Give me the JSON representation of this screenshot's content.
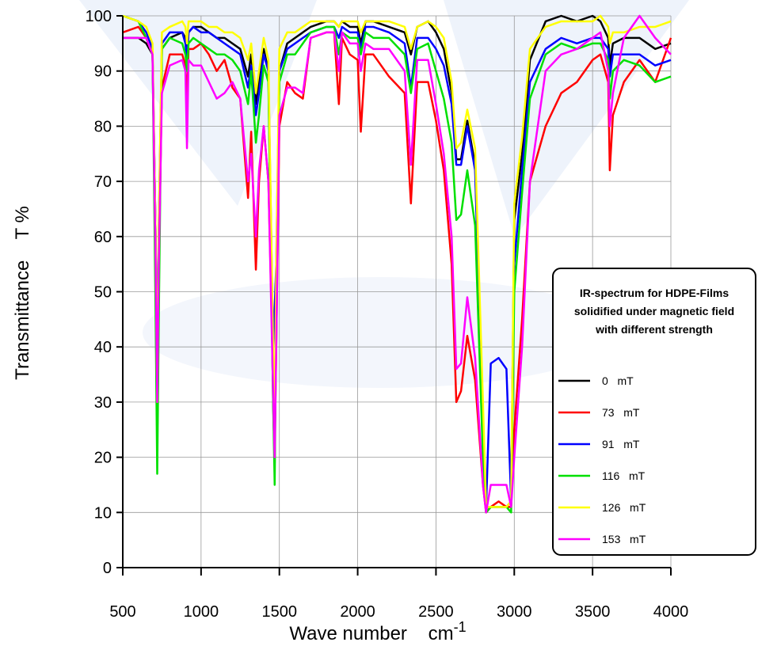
{
  "chart_data": {
    "type": "line",
    "x_label": {
      "text": "Wave number    cm",
      "superscript": "-1"
    },
    "y_label": "Transmittance    T %",
    "legend_title": [
      "IR-spectrum for HDPE-Films",
      "solidified under magnetic field",
      "with different strength"
    ],
    "legend_position": "right",
    "grid": true,
    "xlim": [
      500,
      4000
    ],
    "ylim": [
      0,
      100
    ],
    "xticks": [
      500,
      1000,
      1500,
      2000,
      2500,
      3000,
      3500,
      4000
    ],
    "yticks": [
      0,
      10,
      20,
      30,
      40,
      50,
      60,
      70,
      80,
      90,
      100
    ],
    "x": [
      500,
      600,
      650,
      690,
      710,
      720,
      730,
      750,
      800,
      880,
      900,
      910,
      920,
      950,
      1000,
      1050,
      1100,
      1150,
      1200,
      1250,
      1300,
      1320,
      1350,
      1370,
      1400,
      1430,
      1460,
      1470,
      1480,
      1500,
      1550,
      1600,
      1650,
      1700,
      1800,
      1850,
      1880,
      1900,
      1950,
      2000,
      2020,
      2050,
      2100,
      2200,
      2300,
      2340,
      2380,
      2450,
      2500,
      2550,
      2600,
      2630,
      2660,
      2700,
      2750,
      2800,
      2820,
      2850,
      2900,
      2950,
      2980,
      3000,
      3050,
      3100,
      3200,
      3300,
      3400,
      3500,
      3550,
      3600,
      3610,
      3630,
      3700,
      3800,
      3900,
      4000
    ],
    "series": [
      {
        "name": "0   mT",
        "color": "#000000",
        "values": [
          96,
          96,
          95,
          93,
          60,
          26,
          60,
          94,
          96,
          97,
          96,
          93,
          97,
          98,
          98,
          97,
          96,
          96,
          95,
          94,
          89,
          93,
          84,
          88,
          94,
          90,
          30,
          19,
          50,
          90,
          95,
          96,
          97,
          98,
          99,
          99,
          98,
          99,
          98,
          98,
          95,
          99,
          99,
          98,
          97,
          93,
          98,
          99,
          97,
          94,
          86,
          74,
          74,
          81,
          73,
          25,
          10,
          11,
          11,
          11,
          12,
          63,
          75,
          92,
          99,
          100,
          99,
          100,
          99,
          96,
          91,
          95,
          96,
          96,
          94,
          95
        ]
      },
      {
        "name": "73   mT",
        "color": "#ff0000",
        "values": [
          97,
          98,
          96,
          93,
          55,
          35,
          55,
          87,
          93,
          93,
          91,
          84,
          94,
          94,
          95,
          93,
          90,
          92,
          87,
          85,
          67,
          79,
          54,
          70,
          80,
          70,
          35,
          22,
          40,
          80,
          88,
          86,
          85,
          96,
          97,
          97,
          84,
          96,
          93,
          92,
          79,
          93,
          93,
          89,
          86,
          66,
          88,
          88,
          81,
          72,
          55,
          30,
          32,
          42,
          34,
          15,
          10,
          11,
          12,
          11,
          11,
          25,
          45,
          70,
          80,
          86,
          88,
          92,
          93,
          88,
          72,
          82,
          88,
          92,
          88,
          96
        ]
      },
      {
        "name": "91   mT",
        "color": "#0000ff",
        "values": [
          100,
          99,
          97,
          94,
          60,
          35,
          62,
          95,
          97,
          97,
          95,
          92,
          97,
          98,
          97,
          97,
          96,
          95,
          94,
          93,
          87,
          91,
          82,
          86,
          93,
          90,
          40,
          47,
          55,
          90,
          94,
          95,
          96,
          97,
          98,
          98,
          96,
          98,
          97,
          97,
          94,
          98,
          98,
          97,
          95,
          87,
          96,
          96,
          94,
          91,
          84,
          73,
          73,
          80,
          72,
          25,
          11,
          37,
          38,
          36,
          12,
          55,
          72,
          88,
          94,
          96,
          95,
          96,
          96,
          94,
          89,
          93,
          93,
          93,
          91,
          92
        ]
      },
      {
        "name": "116   mT",
        "color": "#00e000",
        "values": [
          100,
          99,
          96,
          93,
          45,
          17,
          45,
          94,
          96,
          95,
          93,
          90,
          95,
          96,
          95,
          94,
          93,
          93,
          92,
          90,
          84,
          90,
          77,
          82,
          91,
          88,
          30,
          15,
          45,
          88,
          93,
          93,
          95,
          97,
          98,
          98,
          93,
          97,
          96,
          96,
          93,
          97,
          96,
          96,
          93,
          86,
          94,
          95,
          90,
          85,
          77,
          63,
          64,
          72,
          62,
          20,
          10,
          11,
          11,
          11,
          10,
          50,
          68,
          85,
          93,
          95,
          94,
          95,
          95,
          92,
          85,
          90,
          92,
          91,
          88,
          89
        ]
      },
      {
        "name": "126   mT",
        "color": "#ffff00",
        "values": [
          100,
          99,
          98,
          95,
          60,
          30,
          62,
          97,
          98,
          99,
          98,
          95,
          99,
          99,
          99,
          98,
          98,
          97,
          97,
          96,
          92,
          95,
          86,
          90,
          96,
          92,
          40,
          24,
          55,
          94,
          97,
          97,
          98,
          99,
          99,
          99,
          98,
          99,
          99,
          99,
          97,
          99,
          99,
          99,
          98,
          94,
          98,
          99,
          98,
          96,
          88,
          76,
          77,
          83,
          76,
          30,
          11,
          11,
          11,
          11,
          12,
          66,
          78,
          94,
          98,
          99,
          99,
          99,
          100,
          98,
          95,
          97,
          97,
          98,
          98,
          99
        ]
      },
      {
        "name": "153   mT",
        "color": "#ff00ff",
        "values": [
          96,
          96,
          96,
          93,
          55,
          30,
          55,
          86,
          91,
          92,
          90,
          76,
          92,
          91,
          91,
          88,
          85,
          86,
          88,
          85,
          70,
          75,
          60,
          72,
          80,
          70,
          32,
          20,
          40,
          82,
          87,
          87,
          86,
          96,
          97,
          97,
          90,
          97,
          95,
          95,
          90,
          95,
          94,
          94,
          90,
          73,
          92,
          92,
          84,
          75,
          60,
          36,
          37,
          49,
          38,
          15,
          10,
          15,
          15,
          15,
          11,
          20,
          40,
          70,
          90,
          93,
          94,
          96,
          97,
          90,
          80,
          86,
          96,
          100,
          96,
          93
        ]
      }
    ]
  }
}
